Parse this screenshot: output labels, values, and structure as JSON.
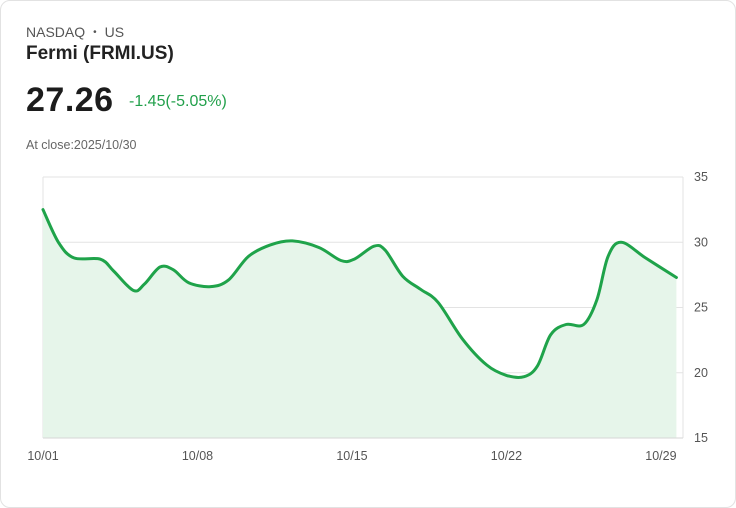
{
  "header": {
    "exchange": "NASDAQ",
    "separator": "•",
    "country": "US",
    "name": "Fermi (FRMI.US)",
    "price": "27.26",
    "change": "-1.45(-5.05%)",
    "close_label": "At close:2025/10/30"
  },
  "colors": {
    "line": "#1fa34a",
    "fill": "#e6f5ea",
    "grid": "#e3e3e3",
    "change": "#22a04b"
  },
  "chart_data": {
    "type": "area",
    "title": "Fermi (FRMI.US)",
    "xlabel": "",
    "ylabel": "",
    "ylim": [
      15,
      35
    ],
    "yticks": [
      35,
      30,
      25,
      20,
      15
    ],
    "xlim": [
      0,
      29
    ],
    "xticks": [
      {
        "day": 0,
        "label": "10/01"
      },
      {
        "day": 7,
        "label": "10/08"
      },
      {
        "day": 14,
        "label": "10/15"
      },
      {
        "day": 21,
        "label": "10/22"
      },
      {
        "day": 28,
        "label": "10/29"
      }
    ],
    "series": [
      {
        "name": "FRMI.US",
        "points": [
          [
            0,
            32.5
          ],
          [
            0.7,
            30.0
          ],
          [
            1.4,
            28.8
          ],
          [
            2.6,
            28.7
          ],
          [
            3.2,
            27.8
          ],
          [
            4.1,
            26.3
          ],
          [
            4.6,
            26.8
          ],
          [
            5.3,
            28.1
          ],
          [
            5.9,
            27.9
          ],
          [
            6.6,
            26.9
          ],
          [
            7.6,
            26.6
          ],
          [
            8.4,
            27.1
          ],
          [
            9.3,
            28.9
          ],
          [
            10.3,
            29.8
          ],
          [
            11.3,
            30.1
          ],
          [
            12.5,
            29.6
          ],
          [
            13.5,
            28.6
          ],
          [
            14.1,
            28.7
          ],
          [
            15.0,
            29.7
          ],
          [
            15.5,
            29.4
          ],
          [
            16.3,
            27.4
          ],
          [
            17.1,
            26.4
          ],
          [
            17.9,
            25.4
          ],
          [
            19.0,
            22.6
          ],
          [
            20.1,
            20.6
          ],
          [
            21.0,
            19.8
          ],
          [
            21.8,
            19.7
          ],
          [
            22.4,
            20.5
          ],
          [
            23.0,
            22.9
          ],
          [
            23.7,
            23.7
          ],
          [
            24.5,
            23.7
          ],
          [
            25.1,
            25.6
          ],
          [
            25.6,
            28.9
          ],
          [
            26.2,
            30.0
          ],
          [
            27.3,
            28.8
          ],
          [
            28.7,
            27.3
          ]
        ]
      }
    ]
  }
}
